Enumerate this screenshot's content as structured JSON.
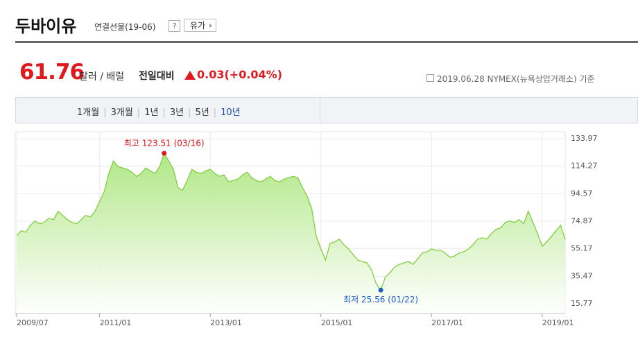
{
  "header": {
    "title": "두바이유",
    "subtitle": "연결선물(19-06)",
    "help_icon": "?",
    "button": "유가"
  },
  "quote": {
    "price": "61.76",
    "unit": "달러 / 배럴",
    "change_label": "전일대비",
    "change": "0.03(+0.04%)",
    "source": "2019.06.28 NYMEX(뉴욕상업거래소) 기준"
  },
  "tabs": [
    {
      "label": "1개월"
    },
    {
      "label": "3개월"
    },
    {
      "label": "1년"
    },
    {
      "label": "3년"
    },
    {
      "label": "5년"
    },
    {
      "label": "10년",
      "active": true
    }
  ],
  "chart_data": {
    "type": "area",
    "grid": true,
    "x": [
      "2009/07",
      "2009/08",
      "2009/09",
      "2009/10",
      "2009/11",
      "2009/12",
      "2010/01",
      "2010/02",
      "2010/03",
      "2010/04",
      "2010/05",
      "2010/06",
      "2010/07",
      "2010/08",
      "2010/09",
      "2010/10",
      "2010/11",
      "2010/12",
      "2011/01",
      "2011/02",
      "2011/03",
      "2011/04",
      "2011/05",
      "2011/06",
      "2011/07",
      "2011/08",
      "2011/09",
      "2011/10",
      "2011/11",
      "2011/12",
      "2012/01",
      "2012/02",
      "2012/03",
      "2012/04",
      "2012/05",
      "2012/06",
      "2012/07",
      "2012/08",
      "2012/09",
      "2012/10",
      "2012/11",
      "2012/12",
      "2013/01",
      "2013/02",
      "2013/03",
      "2013/04",
      "2013/05",
      "2013/06",
      "2013/07",
      "2013/08",
      "2013/09",
      "2013/10",
      "2013/11",
      "2013/12",
      "2014/01",
      "2014/02",
      "2014/03",
      "2014/04",
      "2014/05",
      "2014/06",
      "2014/07",
      "2014/08",
      "2014/09",
      "2014/10",
      "2014/11",
      "2014/12",
      "2015/01",
      "2015/02",
      "2015/03",
      "2015/04",
      "2015/05",
      "2015/06",
      "2015/07",
      "2015/08",
      "2015/09",
      "2015/10",
      "2015/11",
      "2015/12",
      "2016/01",
      "2016/02",
      "2016/03",
      "2016/04",
      "2016/05",
      "2016/06",
      "2016/07",
      "2016/08",
      "2016/09",
      "2016/10",
      "2016/11",
      "2016/12",
      "2017/01",
      "2017/02",
      "2017/03",
      "2017/04",
      "2017/05",
      "2017/06",
      "2017/07",
      "2017/08",
      "2017/09",
      "2017/10",
      "2017/11",
      "2017/12",
      "2018/01",
      "2018/02",
      "2018/03",
      "2018/04",
      "2018/05",
      "2018/06",
      "2018/07",
      "2018/08",
      "2018/09",
      "2018/10",
      "2018/11",
      "2018/12",
      "2019/01",
      "2019/02",
      "2019/03",
      "2019/04",
      "2019/05",
      "2019/06"
    ],
    "series": [
      {
        "color": "#7dcf3b",
        "values": [
          64.4,
          68,
          67,
          72,
          75,
          73,
          74,
          77,
          76,
          82,
          79,
          76,
          74,
          73,
          76,
          79,
          78,
          82,
          89,
          96,
          109,
          118,
          114,
          113,
          112,
          110,
          107,
          109,
          113,
          111,
          109,
          114,
          123.51,
          118,
          112,
          99,
          97,
          104,
          112,
          110,
          109,
          111,
          112,
          109,
          107,
          108,
          103,
          104,
          105,
          108,
          110,
          106,
          104,
          103,
          105,
          107,
          104,
          103,
          105,
          106,
          107,
          106,
          99,
          93,
          84,
          64,
          55,
          47,
          59,
          60,
          62,
          58,
          55,
          51,
          47,
          46,
          45,
          40,
          30,
          25.56,
          35,
          38,
          42,
          44,
          45,
          46,
          44,
          48,
          52,
          53,
          55,
          54,
          54,
          52,
          49,
          50,
          52,
          53,
          55,
          58,
          62,
          63,
          62,
          66,
          69,
          70,
          74,
          75,
          74,
          76,
          73,
          82,
          74,
          66,
          57,
          60,
          64,
          68,
          72,
          61.76
        ]
      }
    ],
    "ylim": [
      15.77,
      133.97
    ],
    "yticks": [
      15.77,
      35.47,
      55.17,
      74.87,
      94.57,
      114.27,
      133.97
    ],
    "xticks": [
      "2009/07",
      "2011/01",
      "2013/01",
      "2015/01",
      "2017/01",
      "2019/01"
    ],
    "annotations": [
      {
        "text": "최고 123.51 (03/16)",
        "color": "#e0191d"
      },
      {
        "text": "최저 25.56 (01/22)",
        "color": "#1e5fc4"
      }
    ]
  }
}
